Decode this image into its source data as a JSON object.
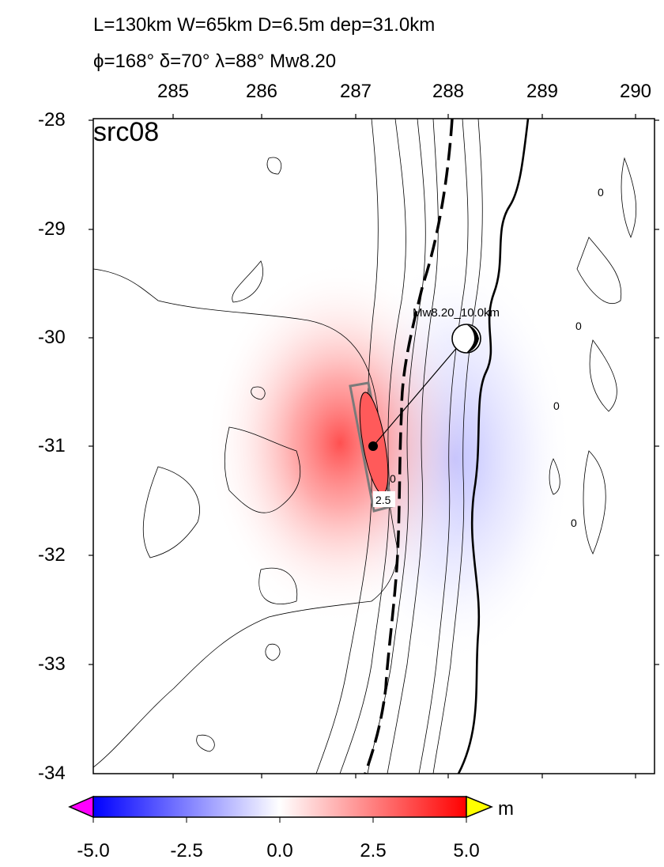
{
  "header": {
    "line1": "L=130km W=65km D=6.5m dep=31.0km",
    "line2": "ϕ=168° δ=70° λ=88° Mw8.20"
  },
  "map": {
    "source_label": "src08",
    "lon_ticks": [
      "285",
      "286",
      "287",
      "288",
      "289",
      "290"
    ],
    "lat_ticks": [
      "-28",
      "-29",
      "-30",
      "-31",
      "-32",
      "-33",
      "-34"
    ],
    "mechanism_label": "Mw8.20_10.0km",
    "contour_labels": [
      "0",
      "0",
      "0",
      "0",
      "0",
      "2.5"
    ]
  },
  "colorbar": {
    "ticks": [
      "-5.0",
      "-2.5",
      "0.0",
      "2.5",
      "5.0"
    ],
    "unit": "m",
    "min_color": "#0000ff",
    "max_color": "#ff0000",
    "under_color": "#ff00ff",
    "over_color": "#ffff00"
  }
}
